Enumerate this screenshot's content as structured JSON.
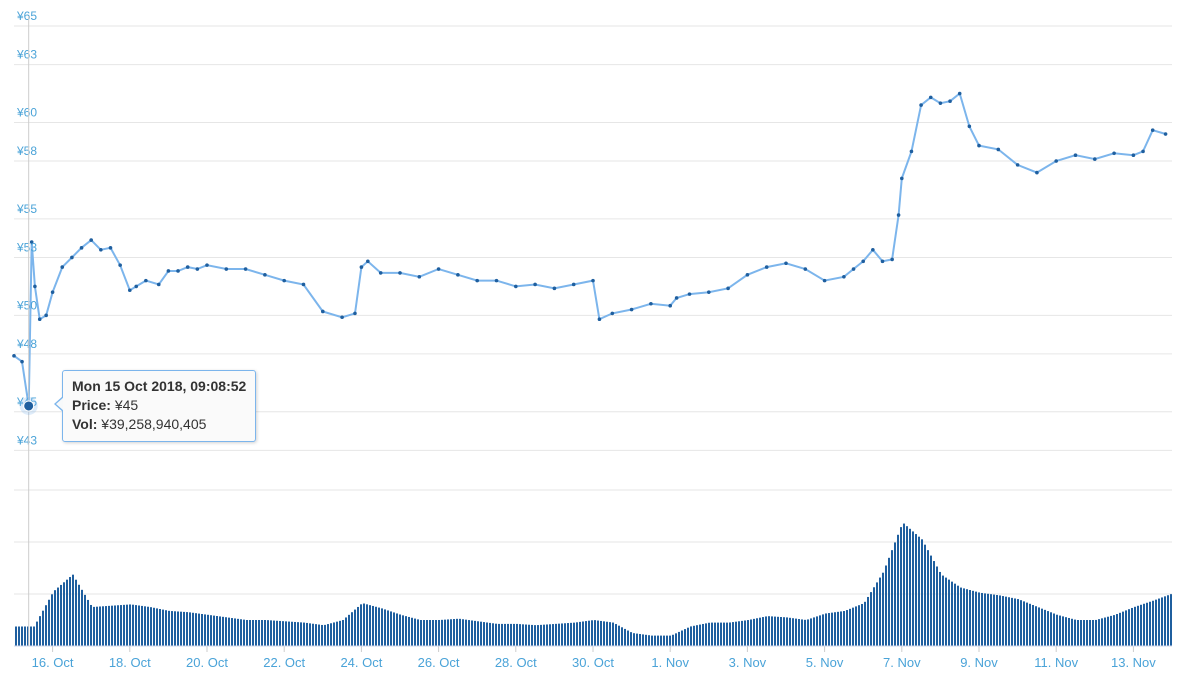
{
  "chart_data": {
    "type": "line",
    "title": "",
    "xlabel": "",
    "ylabel": "",
    "y_tick_labels": [
      "¥43",
      "¥45",
      "¥48",
      "¥50",
      "¥53",
      "¥55",
      "¥58",
      "¥60",
      "¥63",
      "¥65"
    ],
    "x_tick_labels": [
      "16. Oct",
      "18. Oct",
      "20. Oct",
      "22. Oct",
      "24. Oct",
      "26. Oct",
      "28. Oct",
      "30. Oct",
      "1. Nov",
      "3. Nov",
      "5. Nov",
      "7. Nov",
      "9. Nov",
      "11. Nov",
      "13. Nov"
    ],
    "ylim": [
      42.5,
      65
    ],
    "grid": true,
    "legend": "none",
    "series": [
      {
        "role": "price",
        "unit": "¥",
        "color": "#7cb5ec",
        "marker_color": "#1f5f9f",
        "x": [
          "2018-10-15 00:00",
          "2018-10-15 05:00",
          "2018-10-15 09:08",
          "2018-10-15 11:00",
          "2018-10-15 13:00",
          "2018-10-15 16:00",
          "2018-10-15 20:00",
          "2018-10-16 00:00",
          "2018-10-16 06:00",
          "2018-10-16 12:00",
          "2018-10-16 18:00",
          "2018-10-17 00:00",
          "2018-10-17 06:00",
          "2018-10-17 12:00",
          "2018-10-17 18:00",
          "2018-10-18 00:00",
          "2018-10-18 04:00",
          "2018-10-18 10:00",
          "2018-10-18 18:00",
          "2018-10-19 00:00",
          "2018-10-19 06:00",
          "2018-10-19 12:00",
          "2018-10-19 18:00",
          "2018-10-20 00:00",
          "2018-10-20 12:00",
          "2018-10-21 00:00",
          "2018-10-21 12:00",
          "2018-10-22 00:00",
          "2018-10-22 12:00",
          "2018-10-23 00:00",
          "2018-10-23 12:00",
          "2018-10-23 20:00",
          "2018-10-24 00:00",
          "2018-10-24 04:00",
          "2018-10-24 12:00",
          "2018-10-25 00:00",
          "2018-10-25 12:00",
          "2018-10-26 00:00",
          "2018-10-26 12:00",
          "2018-10-27 00:00",
          "2018-10-27 12:00",
          "2018-10-28 00:00",
          "2018-10-28 12:00",
          "2018-10-29 00:00",
          "2018-10-29 12:00",
          "2018-10-30 00:00",
          "2018-10-30 04:00",
          "2018-10-30 12:00",
          "2018-10-31 00:00",
          "2018-10-31 12:00",
          "2018-11-01 00:00",
          "2018-11-01 04:00",
          "2018-11-01 12:00",
          "2018-11-02 00:00",
          "2018-11-02 12:00",
          "2018-11-03 00:00",
          "2018-11-03 12:00",
          "2018-11-04 00:00",
          "2018-11-04 12:00",
          "2018-11-05 00:00",
          "2018-11-05 12:00",
          "2018-11-05 18:00",
          "2018-11-06 00:00",
          "2018-11-06 06:00",
          "2018-11-06 12:00",
          "2018-11-06 18:00",
          "2018-11-06 22:00",
          "2018-11-07 00:00",
          "2018-11-07 06:00",
          "2018-11-07 12:00",
          "2018-11-07 18:00",
          "2018-11-08 00:00",
          "2018-11-08 06:00",
          "2018-11-08 12:00",
          "2018-11-08 18:00",
          "2018-11-09 00:00",
          "2018-11-09 12:00",
          "2018-11-10 00:00",
          "2018-11-10 12:00",
          "2018-11-11 00:00",
          "2018-11-11 12:00",
          "2018-11-12 00:00",
          "2018-11-12 12:00",
          "2018-11-13 00:00",
          "2018-11-13 06:00",
          "2018-11-13 12:00",
          "2018-11-13 20:00"
        ],
        "values": [
          47.9,
          47.6,
          45.3,
          53.8,
          51.5,
          49.8,
          50.0,
          51.2,
          52.5,
          53.0,
          53.5,
          53.9,
          53.4,
          53.5,
          52.6,
          51.3,
          51.5,
          51.8,
          51.6,
          52.3,
          52.3,
          52.5,
          52.4,
          52.6,
          52.4,
          52.4,
          52.1,
          51.8,
          51.6,
          50.2,
          49.9,
          50.1,
          52.5,
          52.8,
          52.2,
          52.2,
          52.0,
          52.4,
          52.1,
          51.8,
          51.8,
          51.5,
          51.6,
          51.4,
          51.6,
          51.8,
          49.8,
          50.1,
          50.3,
          50.6,
          50.5,
          50.9,
          51.1,
          51.2,
          51.4,
          52.1,
          52.5,
          52.7,
          52.4,
          51.8,
          52.0,
          52.4,
          52.8,
          53.4,
          52.8,
          52.9,
          55.2,
          57.1,
          58.5,
          60.9,
          61.3,
          61.0,
          61.1,
          61.5,
          59.8,
          58.8,
          58.6,
          57.8,
          57.4,
          58.0,
          58.3,
          58.1,
          58.4,
          58.3,
          58.5,
          59.6,
          59.4
        ]
      },
      {
        "role": "volume",
        "color": "#1f5f9f",
        "x": [
          "2018-10-15 00:00",
          "2018-10-15 12:00",
          "2018-10-16 00:00",
          "2018-10-16 12:00",
          "2018-10-17 00:00",
          "2018-10-17 12:00",
          "2018-10-18 00:00",
          "2018-10-18 12:00",
          "2018-10-19 00:00",
          "2018-10-19 12:00",
          "2018-10-20 00:00",
          "2018-10-20 12:00",
          "2018-10-21 00:00",
          "2018-10-21 12:00",
          "2018-10-22 00:00",
          "2018-10-22 12:00",
          "2018-10-23 00:00",
          "2018-10-23 12:00",
          "2018-10-24 00:00",
          "2018-10-24 12:00",
          "2018-10-25 00:00",
          "2018-10-25 12:00",
          "2018-10-26 00:00",
          "2018-10-26 12:00",
          "2018-10-27 00:00",
          "2018-10-27 12:00",
          "2018-10-28 00:00",
          "2018-10-28 12:00",
          "2018-10-29 00:00",
          "2018-10-29 12:00",
          "2018-10-30 00:00",
          "2018-10-30 12:00",
          "2018-10-31 00:00",
          "2018-10-31 12:00",
          "2018-11-01 00:00",
          "2018-11-01 12:00",
          "2018-11-02 00:00",
          "2018-11-02 12:00",
          "2018-11-03 00:00",
          "2018-11-03 12:00",
          "2018-11-04 00:00",
          "2018-11-04 12:00",
          "2018-11-05 00:00",
          "2018-11-05 12:00",
          "2018-11-06 00:00",
          "2018-11-06 12:00",
          "2018-11-07 00:00",
          "2018-11-07 12:00",
          "2018-11-08 00:00",
          "2018-11-08 12:00",
          "2018-11-09 00:00",
          "2018-11-09 12:00",
          "2018-11-10 00:00",
          "2018-11-10 12:00",
          "2018-11-11 00:00",
          "2018-11-11 12:00",
          "2018-11-12 00:00",
          "2018-11-12 12:00",
          "2018-11-13 00:00",
          "2018-11-13 12:00",
          "2018-11-13 23:00"
        ],
        "values": [
          0.15,
          0.15,
          0.42,
          0.55,
          0.3,
          0.31,
          0.32,
          0.3,
          0.27,
          0.26,
          0.24,
          0.22,
          0.2,
          0.2,
          0.19,
          0.18,
          0.16,
          0.2,
          0.33,
          0.29,
          0.24,
          0.2,
          0.2,
          0.21,
          0.19,
          0.17,
          0.17,
          0.16,
          0.17,
          0.18,
          0.2,
          0.18,
          0.1,
          0.08,
          0.08,
          0.15,
          0.18,
          0.18,
          0.2,
          0.23,
          0.22,
          0.2,
          0.25,
          0.27,
          0.33,
          0.57,
          0.95,
          0.82,
          0.55,
          0.45,
          0.41,
          0.39,
          0.36,
          0.3,
          0.24,
          0.2,
          0.2,
          0.24,
          0.3,
          0.35,
          0.4
        ]
      }
    ],
    "tooltip": {
      "title": "Mon 15 Oct 2018, 09:08:52",
      "price_label": "Price:",
      "price_value": "¥45",
      "vol_label": "Vol:",
      "vol_value": "¥39,258,940,405",
      "hover_x": "2018-10-15 09:08",
      "hover_value": 45.3
    }
  }
}
